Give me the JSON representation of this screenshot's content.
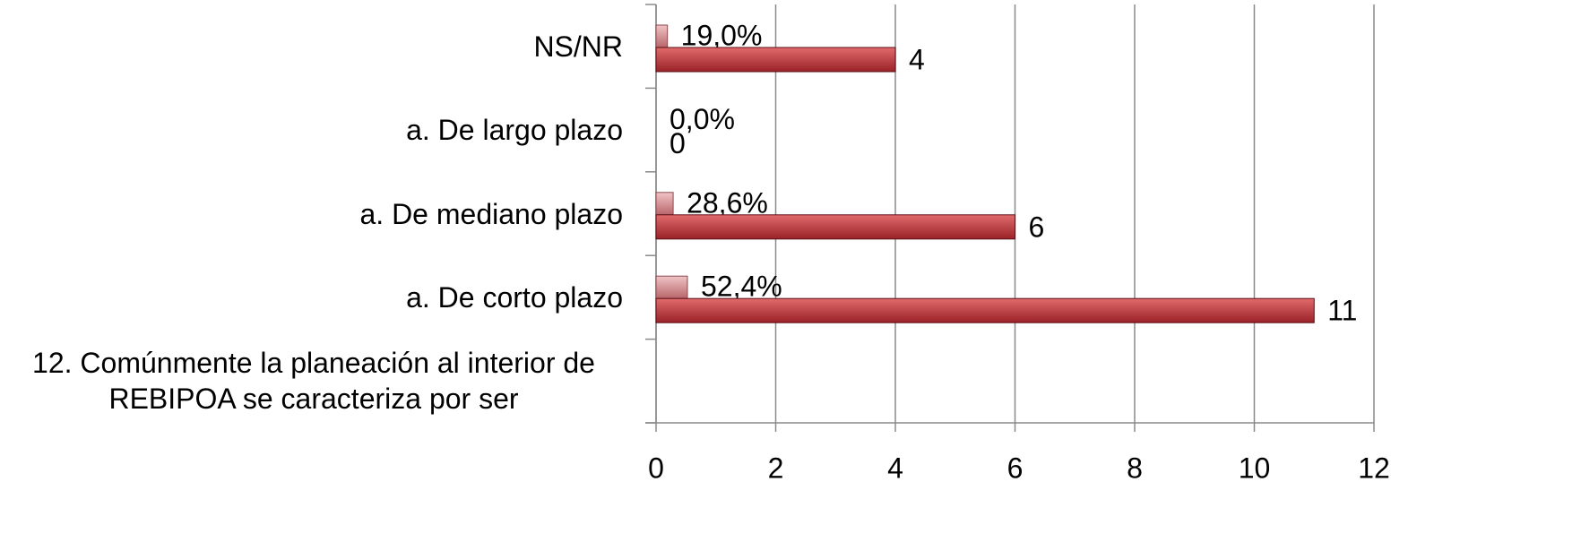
{
  "chart_data": {
    "type": "bar",
    "orientation": "horizontal",
    "categories": [
      "NS/NR",
      "a. De largo plazo",
      "a. De mediano plazo",
      "a. De corto plazo",
      "12. Comúnmente la planeación al interior de REBIPOA se caracteriza por ser"
    ],
    "series": [
      {
        "color": "#d9969a",
        "values": [
          0.19,
          0,
          0.286,
          0.524,
          null
        ],
        "value_labels": [
          "19,0%",
          "0,0%",
          "28,6%",
          "52,4%",
          null
        ]
      },
      {
        "color": "#c0393b",
        "values": [
          4,
          0,
          6,
          11,
          null
        ]
      }
    ],
    "xlim": [
      0,
      12
    ],
    "xticks": [
      0,
      2,
      4,
      6,
      8,
      10,
      12
    ],
    "grid": true
  }
}
